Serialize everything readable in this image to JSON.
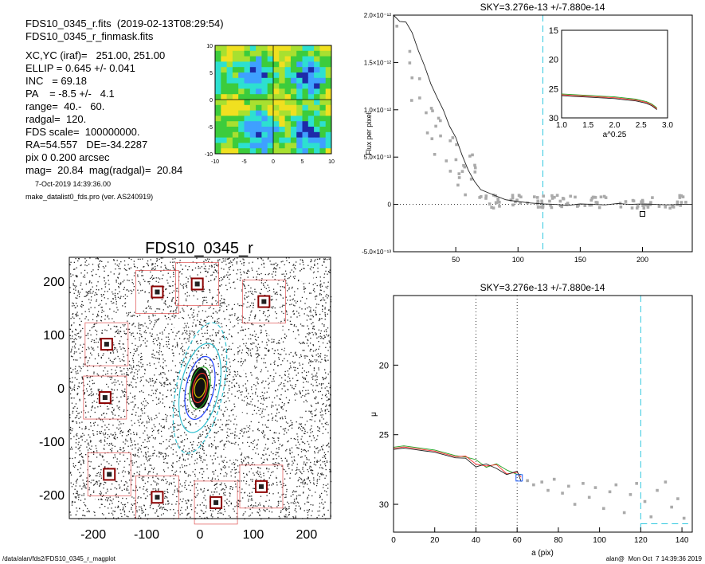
{
  "header": {
    "lines": [
      "FDS10_0345_r.fits  (2019-02-13T08:29:54)",
      "FDS10_0345_r_finmask.fits",
      "XC,YC (iraf)=   251.00, 251.00",
      "ELLIP = 0.645 +/- 0.041",
      "INC   = 69.18",
      "PA    = -8.5 +/-   4.1",
      "range=  40.-   60.",
      "radgal=  120.",
      "FDS scale=  100000000.",
      "RA=54.557   DE=-34.2287",
      "pix 0 0.200 arcsec",
      "mag=  20.84  mag(radgal)=  20.84"
    ],
    "small_lines": [
      "7-Oct-2019 14:39:36.00",
      "make_datalist0_fds.pro (ver. AS240919)"
    ]
  },
  "footer": {
    "left": "/data/alan/fds2/FDS10_0345_r_magplot",
    "right": "alan@  Mon Oct  7 14:39:36 2019"
  },
  "chart_data": [
    {
      "id": "thumbnail",
      "type": "heatmap",
      "xticks": [
        "-10",
        "-5",
        "0",
        "5",
        "10"
      ],
      "yticks": [
        "10",
        "5",
        "0",
        "-5",
        "-10"
      ],
      "xlim": [
        -10,
        10
      ],
      "ylim": [
        -10,
        10
      ],
      "colormap": [
        "#1e2aa8",
        "#3fa0ff",
        "#2de0d0",
        "#3ccc3c",
        "#a8e030",
        "#f0e020",
        "#d02020"
      ]
    },
    {
      "id": "mask-image",
      "type": "scatter",
      "title": "FDS10_0345_r",
      "xticks": [
        "-200",
        "-100",
        "0",
        "100",
        "200"
      ],
      "yticks": [
        "200",
        "100",
        "0",
        "-100",
        "-200"
      ],
      "xlim": [
        -245,
        245
      ],
      "ylim": [
        -245,
        245
      ],
      "masked_stars": [
        {
          "x": -80,
          "y": 180
        },
        {
          "x": -5,
          "y": 195
        },
        {
          "x": 120,
          "y": 162
        },
        {
          "x": -175,
          "y": 82
        },
        {
          "x": -178,
          "y": -18
        },
        {
          "x": -170,
          "y": -162
        },
        {
          "x": -80,
          "y": -205
        },
        {
          "x": 30,
          "y": -215
        },
        {
          "x": 115,
          "y": -185
        }
      ],
      "ellipses": [
        {
          "a": 18,
          "b": 10,
          "color": "#d4c000"
        },
        {
          "a": 28,
          "b": 13,
          "color": "#ff3030"
        },
        {
          "a": 40,
          "b": 18,
          "color": "#20a020"
        },
        {
          "a": 60,
          "b": 26,
          "color": "#2040ff"
        },
        {
          "a": 85,
          "b": 36,
          "color": "#30c0d0"
        },
        {
          "a": 125,
          "b": 44,
          "color": "#30c0d0",
          "dashed": true
        }
      ]
    },
    {
      "id": "flux-profile",
      "type": "line",
      "title": "SKY=3.276e-13 +/-7.880e-14",
      "ylabel": "Flux per pixel",
      "xlim": [
        0,
        240
      ],
      "ylim": [
        -5e-13,
        2e-12
      ],
      "xticks": [
        "50",
        "100",
        "150",
        "200"
      ],
      "yticks": [
        "2.0×10⁻¹²",
        "1.5×10⁻¹²",
        "1.0×10⁻¹²",
        "5.0×10⁻¹³",
        "0",
        "-5.0×10⁻¹³"
      ],
      "sky_marker_x": 120,
      "series": [
        {
          "x": [
            0,
            5,
            10,
            15,
            20,
            25,
            30,
            35,
            40,
            45,
            50,
            55,
            60,
            65,
            70,
            80,
            90,
            100,
            110,
            120,
            130,
            140,
            150,
            160,
            170,
            180,
            190,
            200,
            210,
            220,
            230,
            240
          ],
          "values": [
            2e-12,
            1.95e-12,
            1.9e-12,
            1.8e-12,
            1.6e-12,
            1.45e-12,
            1.3e-12,
            1.15e-12,
            1e-12,
            8.5e-13,
            6.8e-13,
            5.2e-13,
            3.8e-13,
            2.5e-13,
            1.6e-13,
            9e-14,
            5e-14,
            3e-14,
            1.5e-14,
            5e-15,
            0,
            -1e-14,
            5e-15,
            0,
            -5e-15,
            1e-14,
            0,
            5e-15,
            0,
            -5e-15,
            0,
            0
          ]
        }
      ],
      "inset": {
        "xlabel": "a^0.25",
        "xlim": [
          1.0,
          3.0
        ],
        "ylim": [
          30,
          15
        ],
        "xticks": [
          "1.0",
          "1.5",
          "2.0",
          "2.5",
          "3.0"
        ],
        "yticks": [
          "15",
          "20",
          "25",
          "30"
        ],
        "series": [
          {
            "x": [
              1.0,
              1.2,
              1.4,
              1.6,
              1.8,
              2.0,
              2.2,
              2.4,
              2.6,
              2.7,
              2.8
            ],
            "values": [
              25.9,
              26.0,
              26.1,
              26.2,
              26.3,
              26.4,
              26.6,
              26.8,
              27.2,
              27.6,
              28.3
            ]
          }
        ]
      }
    },
    {
      "id": "mu-profile",
      "type": "line",
      "title": "SKY=3.276e-13 +/-7.880e-14",
      "xlabel": "a (pix)",
      "ylabel": "μ",
      "xlim": [
        0,
        145
      ],
      "ylim": [
        32,
        15
      ],
      "xticks": [
        "0",
        "20",
        "40",
        "60",
        "80",
        "100",
        "120",
        "140"
      ],
      "yticks": [
        "20",
        "25",
        "30"
      ],
      "range_markers_x": [
        40,
        60
      ],
      "sky_marker_x": 120,
      "series": [
        {
          "x": [
            0,
            5,
            10,
            15,
            20,
            25,
            30,
            35,
            40,
            45,
            50,
            55,
            60,
            62
          ],
          "values": [
            25.9,
            25.8,
            25.9,
            26.0,
            26.1,
            26.3,
            26.5,
            26.7,
            26.9,
            27.1,
            27.3,
            27.5,
            27.7,
            28.1
          ]
        }
      ],
      "points": [
        {
          "x": 65,
          "y": 28.3
        },
        {
          "x": 68,
          "y": 28.6
        },
        {
          "x": 72,
          "y": 28.4
        },
        {
          "x": 75,
          "y": 29.0
        },
        {
          "x": 78,
          "y": 28.2
        },
        {
          "x": 82,
          "y": 29.2
        },
        {
          "x": 85,
          "y": 28.7
        },
        {
          "x": 88,
          "y": 30.0
        },
        {
          "x": 92,
          "y": 28.5
        },
        {
          "x": 95,
          "y": 29.5
        },
        {
          "x": 98,
          "y": 28.8
        },
        {
          "x": 102,
          "y": 30.3
        },
        {
          "x": 105,
          "y": 29.1
        },
        {
          "x": 108,
          "y": 28.6
        },
        {
          "x": 112,
          "y": 30.6
        },
        {
          "x": 115,
          "y": 29.3
        },
        {
          "x": 118,
          "y": 28.5
        },
        {
          "x": 122,
          "y": 29.8
        },
        {
          "x": 125,
          "y": 30.9
        },
        {
          "x": 128,
          "y": 29.0
        },
        {
          "x": 132,
          "y": 28.4
        },
        {
          "x": 135,
          "y": 30.2
        },
        {
          "x": 138,
          "y": 29.6
        },
        {
          "x": 141,
          "y": 31.0
        }
      ]
    }
  ]
}
